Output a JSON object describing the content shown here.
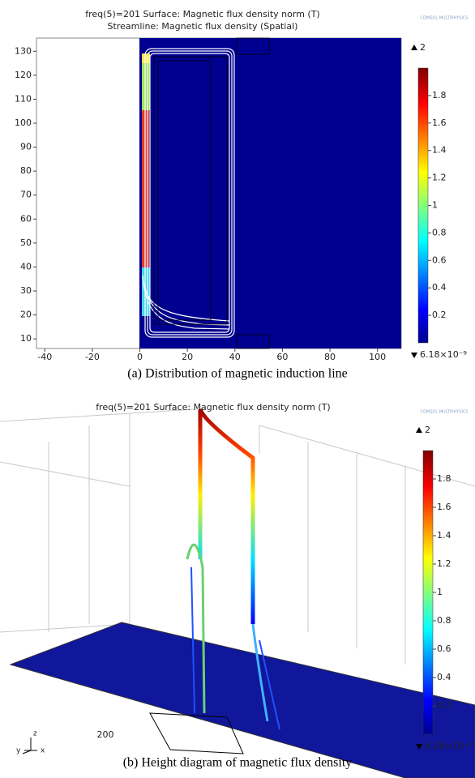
{
  "panels": [
    {
      "title": "freq(5)=201   Surface: Magnetic flux density norm (T)",
      "subtitle": "Streamline: Magnetic flux density (Spatial)",
      "logo": "COMSOL MULTIPHYSICS",
      "xlim": [
        -43.5,
        110
      ],
      "xticks": [
        -40,
        -20,
        0,
        20,
        40,
        60,
        80,
        100
      ],
      "ylim": [
        6,
        135.5
      ],
      "yticks": [
        10,
        20,
        30,
        40,
        50,
        60,
        70,
        80,
        90,
        100,
        110,
        120,
        130
      ],
      "colorbar": {
        "max": 2,
        "min_label": "6.18×10⁻⁹",
        "lim": [
          0,
          2
        ],
        "ticks": [
          0.2,
          0.4,
          0.6,
          0.8,
          1,
          1.2,
          1.4,
          1.6,
          1.8
        ]
      },
      "caption": "(a) Distribution of magnetic induction line"
    },
    {
      "title": "freq(5)=201   Surface: Magnetic flux density norm (T)",
      "logo": "COMSOL MULTIPHYSICS",
      "axis_tick": 200,
      "triad": [
        "x",
        "y",
        "z"
      ],
      "colorbar": {
        "max": 2,
        "min_label": "6.18×10⁻⁹",
        "lim": [
          0,
          2
        ],
        "ticks": [
          0.2,
          0.4,
          0.6,
          0.8,
          1,
          1.2,
          1.4,
          1.6,
          1.8
        ]
      },
      "caption": "(b) Height diagram of magnetic flux density"
    }
  ]
}
